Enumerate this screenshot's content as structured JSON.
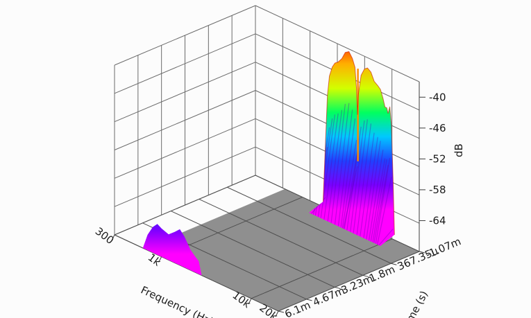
{
  "chart_data": {
    "type": "surface-3d-waterfall",
    "title": "",
    "axes": {
      "frequency": {
        "label": "Frequency (Hz)",
        "scale": "log",
        "range": [
          300,
          20000
        ],
        "ticks": [
          {
            "value": 300,
            "label": "300"
          },
          {
            "value": 1000,
            "label": "1k"
          },
          {
            "value": 10000,
            "label": "10k"
          },
          {
            "value": 20000,
            "label": "20k"
          }
        ]
      },
      "time": {
        "label": "Time (s)",
        "range": [
          -0.00107,
          0.0061
        ],
        "ticks": [
          {
            "value": -0.00107,
            "label": "-1.07m"
          },
          {
            "value": 0.00036735,
            "label": "367.35u"
          },
          {
            "value": 0.0018,
            "label": "1.8m"
          },
          {
            "value": 0.00323,
            "label": "3.23m"
          },
          {
            "value": 0.00467,
            "label": "4.67m"
          },
          {
            "value": 0.0061,
            "label": "6.1m"
          }
        ]
      },
      "level": {
        "label": "dB",
        "range": [
          -70,
          -37
        ],
        "ticks": [
          {
            "value": -40,
            "label": "-40"
          },
          {
            "value": -46,
            "label": "-46"
          },
          {
            "value": -52,
            "label": "-52"
          },
          {
            "value": -58,
            "label": "-58"
          },
          {
            "value": -64,
            "label": "-64"
          }
        ]
      }
    },
    "back_slice": {
      "time": -0.00107,
      "frequencies": [
        1700,
        1800,
        1900,
        2000,
        2150,
        2300,
        2500,
        2750,
        3000,
        3300,
        3600,
        3850,
        4000,
        4100,
        4200,
        4500,
        4900,
        5300,
        5800,
        6300,
        6900,
        7400,
        7900,
        8300,
        8700,
        9000,
        9400,
        9800,
        10200,
        10600
      ],
      "levels": [
        -69,
        -58,
        -48,
        -44,
        -42,
        -41,
        -40.5,
        -39.5,
        -38,
        -37.5,
        -38.5,
        -40,
        -44,
        -49,
        -45,
        -41,
        -39.5,
        -39,
        -39.5,
        -41,
        -41.5,
        -42,
        -43.5,
        -45,
        -45,
        -46,
        -44.5,
        -48,
        -58,
        -69
      ]
    },
    "front_slice": {
      "time": 0.0061,
      "frequencies": [
        620,
        700,
        800,
        900,
        1000,
        1200,
        1400,
        1600,
        1800,
        2100,
        2400,
        2600,
        2800
      ],
      "levels": [
        -70,
        -67,
        -65,
        -64,
        -64.5,
        -65,
        -64,
        -63,
        -64,
        -66,
        -67,
        -67.5,
        -70
      ]
    },
    "colormap": [
      "#ff00ff",
      "#7a00ff",
      "#2040ff",
      "#00c8ff",
      "#00ff60",
      "#d2ff00",
      "#ffb000",
      "#ff2000"
    ]
  }
}
